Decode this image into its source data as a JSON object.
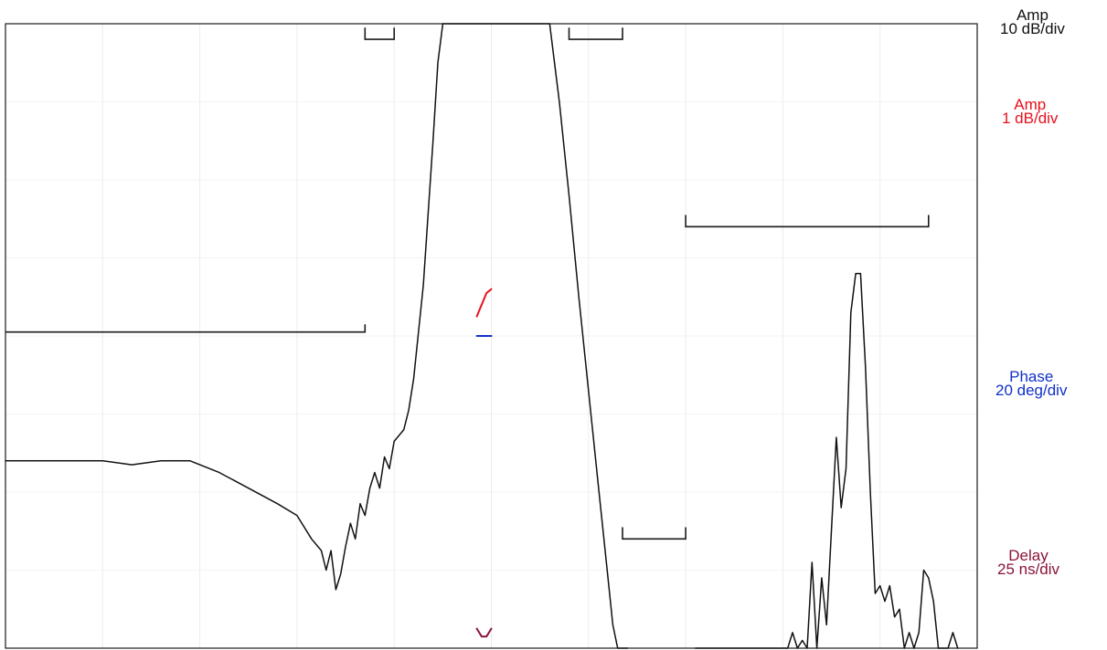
{
  "chart_data": {
    "type": "line",
    "title": "",
    "xlabel": "",
    "ylabel": "",
    "grid": true,
    "x_divisions": 10,
    "y_divisions": 8,
    "legend_position": "right",
    "legend": [
      {
        "id": "amp-coarse",
        "name": "Amp",
        "scale": "10 dB/div",
        "color": "#111111"
      },
      {
        "id": "amp-fine",
        "name": "Amp",
        "scale": "1 dB/div",
        "color": "#e8101e"
      },
      {
        "id": "phase",
        "name": "Phase",
        "scale": "20 deg/div",
        "color": "#1030c8"
      },
      {
        "id": "delay",
        "name": "Delay",
        "scale": "25 ns/div",
        "color": "#8a1438"
      }
    ],
    "series": [
      {
        "ref": "amp-coarse",
        "color": "#111111",
        "points": [
          [
            0.0,
            -4.6
          ],
          [
            0.2,
            -4.6
          ],
          [
            0.5,
            -4.6
          ],
          [
            0.8,
            -4.6
          ],
          [
            1.0,
            -4.6
          ],
          [
            1.3,
            -4.65
          ],
          [
            1.6,
            -4.6
          ],
          [
            1.9,
            -4.6
          ],
          [
            2.2,
            -4.75
          ],
          [
            2.5,
            -4.95
          ],
          [
            2.8,
            -5.15
          ],
          [
            3.0,
            -5.3
          ],
          [
            3.15,
            -5.6
          ],
          [
            3.25,
            -5.75
          ],
          [
            3.3,
            -6.0
          ],
          [
            3.35,
            -5.75
          ],
          [
            3.4,
            -6.25
          ],
          [
            3.45,
            -6.05
          ],
          [
            3.5,
            -5.7
          ],
          [
            3.55,
            -5.4
          ],
          [
            3.6,
            -5.6
          ],
          [
            3.65,
            -5.15
          ],
          [
            3.7,
            -5.3
          ],
          [
            3.75,
            -4.95
          ],
          [
            3.8,
            -4.75
          ],
          [
            3.85,
            -4.95
          ],
          [
            3.9,
            -4.55
          ],
          [
            3.95,
            -4.7
          ],
          [
            4.0,
            -4.35
          ],
          [
            4.1,
            -4.2
          ],
          [
            4.15,
            -3.95
          ],
          [
            4.2,
            -3.55
          ],
          [
            4.3,
            -2.35
          ],
          [
            4.4,
            -0.5
          ],
          [
            4.45,
            0.5
          ],
          [
            4.5,
            1.2
          ],
          [
            4.6,
            1.55
          ],
          [
            4.7,
            1.7
          ],
          [
            4.8,
            1.78
          ],
          [
            4.9,
            1.82
          ],
          [
            5.0,
            1.85
          ],
          [
            5.2,
            1.85
          ],
          [
            5.4,
            1.8
          ],
          [
            5.5,
            1.7
          ],
          [
            5.55,
            1.5
          ],
          [
            5.6,
            1.0
          ],
          [
            5.7,
            0.0
          ],
          [
            5.8,
            -1.2
          ],
          [
            5.9,
            -2.5
          ],
          [
            6.0,
            -3.7
          ],
          [
            6.1,
            -4.9
          ],
          [
            6.2,
            -6.1
          ],
          [
            6.25,
            -6.7
          ],
          [
            6.3,
            -7.3
          ],
          [
            6.35,
            -8.0
          ],
          [
            6.4,
            -8.5
          ]
        ]
      },
      {
        "ref": "amp-coarse",
        "color": "#111111",
        "points": [
          [
            7.1,
            -8.5
          ],
          [
            7.15,
            -7.8
          ],
          [
            7.2,
            -7.6
          ],
          [
            7.25,
            -8.3
          ],
          [
            7.3,
            -7.4
          ],
          [
            7.35,
            -8.2
          ],
          [
            7.4,
            -7.5
          ],
          [
            7.45,
            -8.4
          ],
          [
            7.5,
            -7.7
          ],
          [
            7.55,
            -8.1
          ],
          [
            7.6,
            -7.3
          ],
          [
            7.65,
            -8.2
          ],
          [
            7.7,
            -7.5
          ],
          [
            7.75,
            -8.3
          ],
          [
            7.8,
            -7.4
          ],
          [
            7.85,
            -7.9
          ],
          [
            7.9,
            -7.5
          ],
          [
            7.95,
            -8.0
          ],
          [
            8.0,
            -7.1
          ],
          [
            8.05,
            -7.7
          ],
          [
            8.1,
            -6.8
          ],
          [
            8.15,
            -7.5
          ],
          [
            8.2,
            -6.9
          ],
          [
            8.25,
            -7.3
          ],
          [
            8.3,
            -5.9
          ],
          [
            8.35,
            -7.2
          ],
          [
            8.4,
            -6.1
          ],
          [
            8.45,
            -6.7
          ],
          [
            8.5,
            -5.5
          ],
          [
            8.55,
            -4.3
          ],
          [
            8.6,
            -5.2
          ],
          [
            8.65,
            -4.7
          ],
          [
            8.7,
            -2.7
          ],
          [
            8.75,
            -2.2
          ],
          [
            8.8,
            -2.2
          ],
          [
            8.85,
            -3.4
          ],
          [
            8.9,
            -5.0
          ],
          [
            8.95,
            -6.3
          ],
          [
            9.0,
            -6.2
          ],
          [
            9.05,
            -6.4
          ],
          [
            9.1,
            -6.2
          ],
          [
            9.15,
            -6.6
          ],
          [
            9.2,
            -6.5
          ],
          [
            9.25,
            -7.2
          ],
          [
            9.3,
            -6.8
          ],
          [
            9.35,
            -7.8
          ],
          [
            9.4,
            -6.8
          ],
          [
            9.45,
            -6.0
          ],
          [
            9.5,
            -6.1
          ],
          [
            9.55,
            -6.4
          ],
          [
            9.6,
            -7.0
          ],
          [
            9.65,
            -7.5
          ],
          [
            9.7,
            -7.3
          ],
          [
            9.75,
            -6.8
          ],
          [
            9.8,
            -7.5
          ]
        ]
      },
      {
        "ref": "amp-fine",
        "color": "#e8101e",
        "points": [
          [
            4.85,
            -2.75
          ],
          [
            4.9,
            -2.6
          ],
          [
            4.95,
            -2.45
          ],
          [
            5.0,
            -2.4
          ]
        ]
      },
      {
        "ref": "phase",
        "color": "#1030c8",
        "points": [
          [
            4.85,
            -3.0
          ],
          [
            5.0,
            -3.0
          ]
        ]
      },
      {
        "ref": "delay",
        "color": "#8a1438",
        "points": [
          [
            4.85,
            -6.75
          ],
          [
            4.9,
            -6.85
          ],
          [
            4.95,
            -6.85
          ],
          [
            5.0,
            -6.75
          ]
        ]
      }
    ],
    "limit_lines": [
      {
        "points": [
          [
            0.0,
            -2.95
          ],
          [
            3.7,
            -2.95
          ],
          [
            3.7,
            -2.85
          ]
        ]
      },
      {
        "points": [
          [
            3.7,
            0.95
          ],
          [
            3.7,
            0.8
          ],
          [
            4.0,
            0.8
          ],
          [
            4.0,
            0.95
          ]
        ]
      },
      {
        "points": [
          [
            5.8,
            0.95
          ],
          [
            5.8,
            0.8
          ],
          [
            6.35,
            0.8
          ],
          [
            6.35,
            0.95
          ]
        ]
      },
      {
        "points": [
          [
            6.35,
            -5.45
          ],
          [
            6.35,
            -5.6
          ],
          [
            7.0,
            -5.6
          ],
          [
            7.0,
            -5.45
          ]
        ]
      },
      {
        "points": [
          [
            7.0,
            -1.45
          ],
          [
            7.0,
            -1.6
          ],
          [
            9.5,
            -1.6
          ],
          [
            9.5,
            -1.45
          ]
        ]
      }
    ]
  }
}
